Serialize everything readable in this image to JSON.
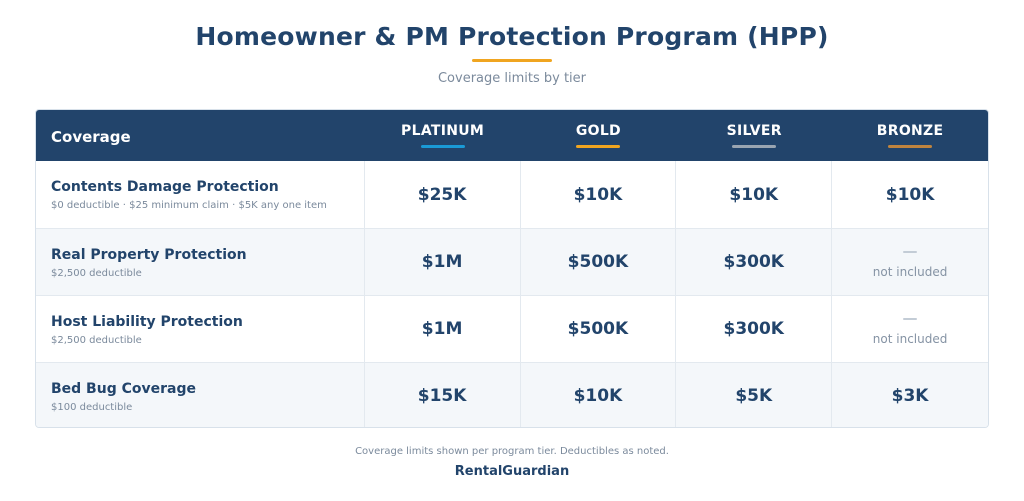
{
  "header": {
    "title": "Homeowner & PM Protection Program (HPP)",
    "subtitle": "Coverage limits by tier",
    "accent_color": "#f0a520"
  },
  "table": {
    "coverage_header": "Coverage",
    "tiers": [
      {
        "name": "PLATINUM",
        "color": "#1a9ad6"
      },
      {
        "name": "GOLD",
        "color": "#f0a520"
      },
      {
        "name": "SILVER",
        "color": "#9aa5b1"
      },
      {
        "name": "BRONZE",
        "color": "#c0843e"
      }
    ],
    "rows": [
      {
        "name": "Contents Damage Protection",
        "note": "$0 deductible · $25 minimum claim · $5K any one item",
        "values": [
          "$25K",
          "$10K",
          "$10K",
          "$10K"
        ]
      },
      {
        "name": "Real Property Protection",
        "note": "$2,500 deductible",
        "values": [
          "$1M",
          "$500K",
          "$300K",
          null
        ]
      },
      {
        "name": "Host Liability Protection",
        "note": "$2,500 deductible",
        "values": [
          "$1M",
          "$500K",
          "$300K",
          null
        ]
      },
      {
        "name": "Bed Bug Coverage",
        "note": "$100 deductible",
        "values": [
          "$15K",
          "$10K",
          "$5K",
          "$3K"
        ]
      }
    ],
    "not_included_label": "not included"
  },
  "footer": {
    "note": "Coverage limits shown per program tier. Deductibles as noted.",
    "brand": "RentalGuardian"
  }
}
